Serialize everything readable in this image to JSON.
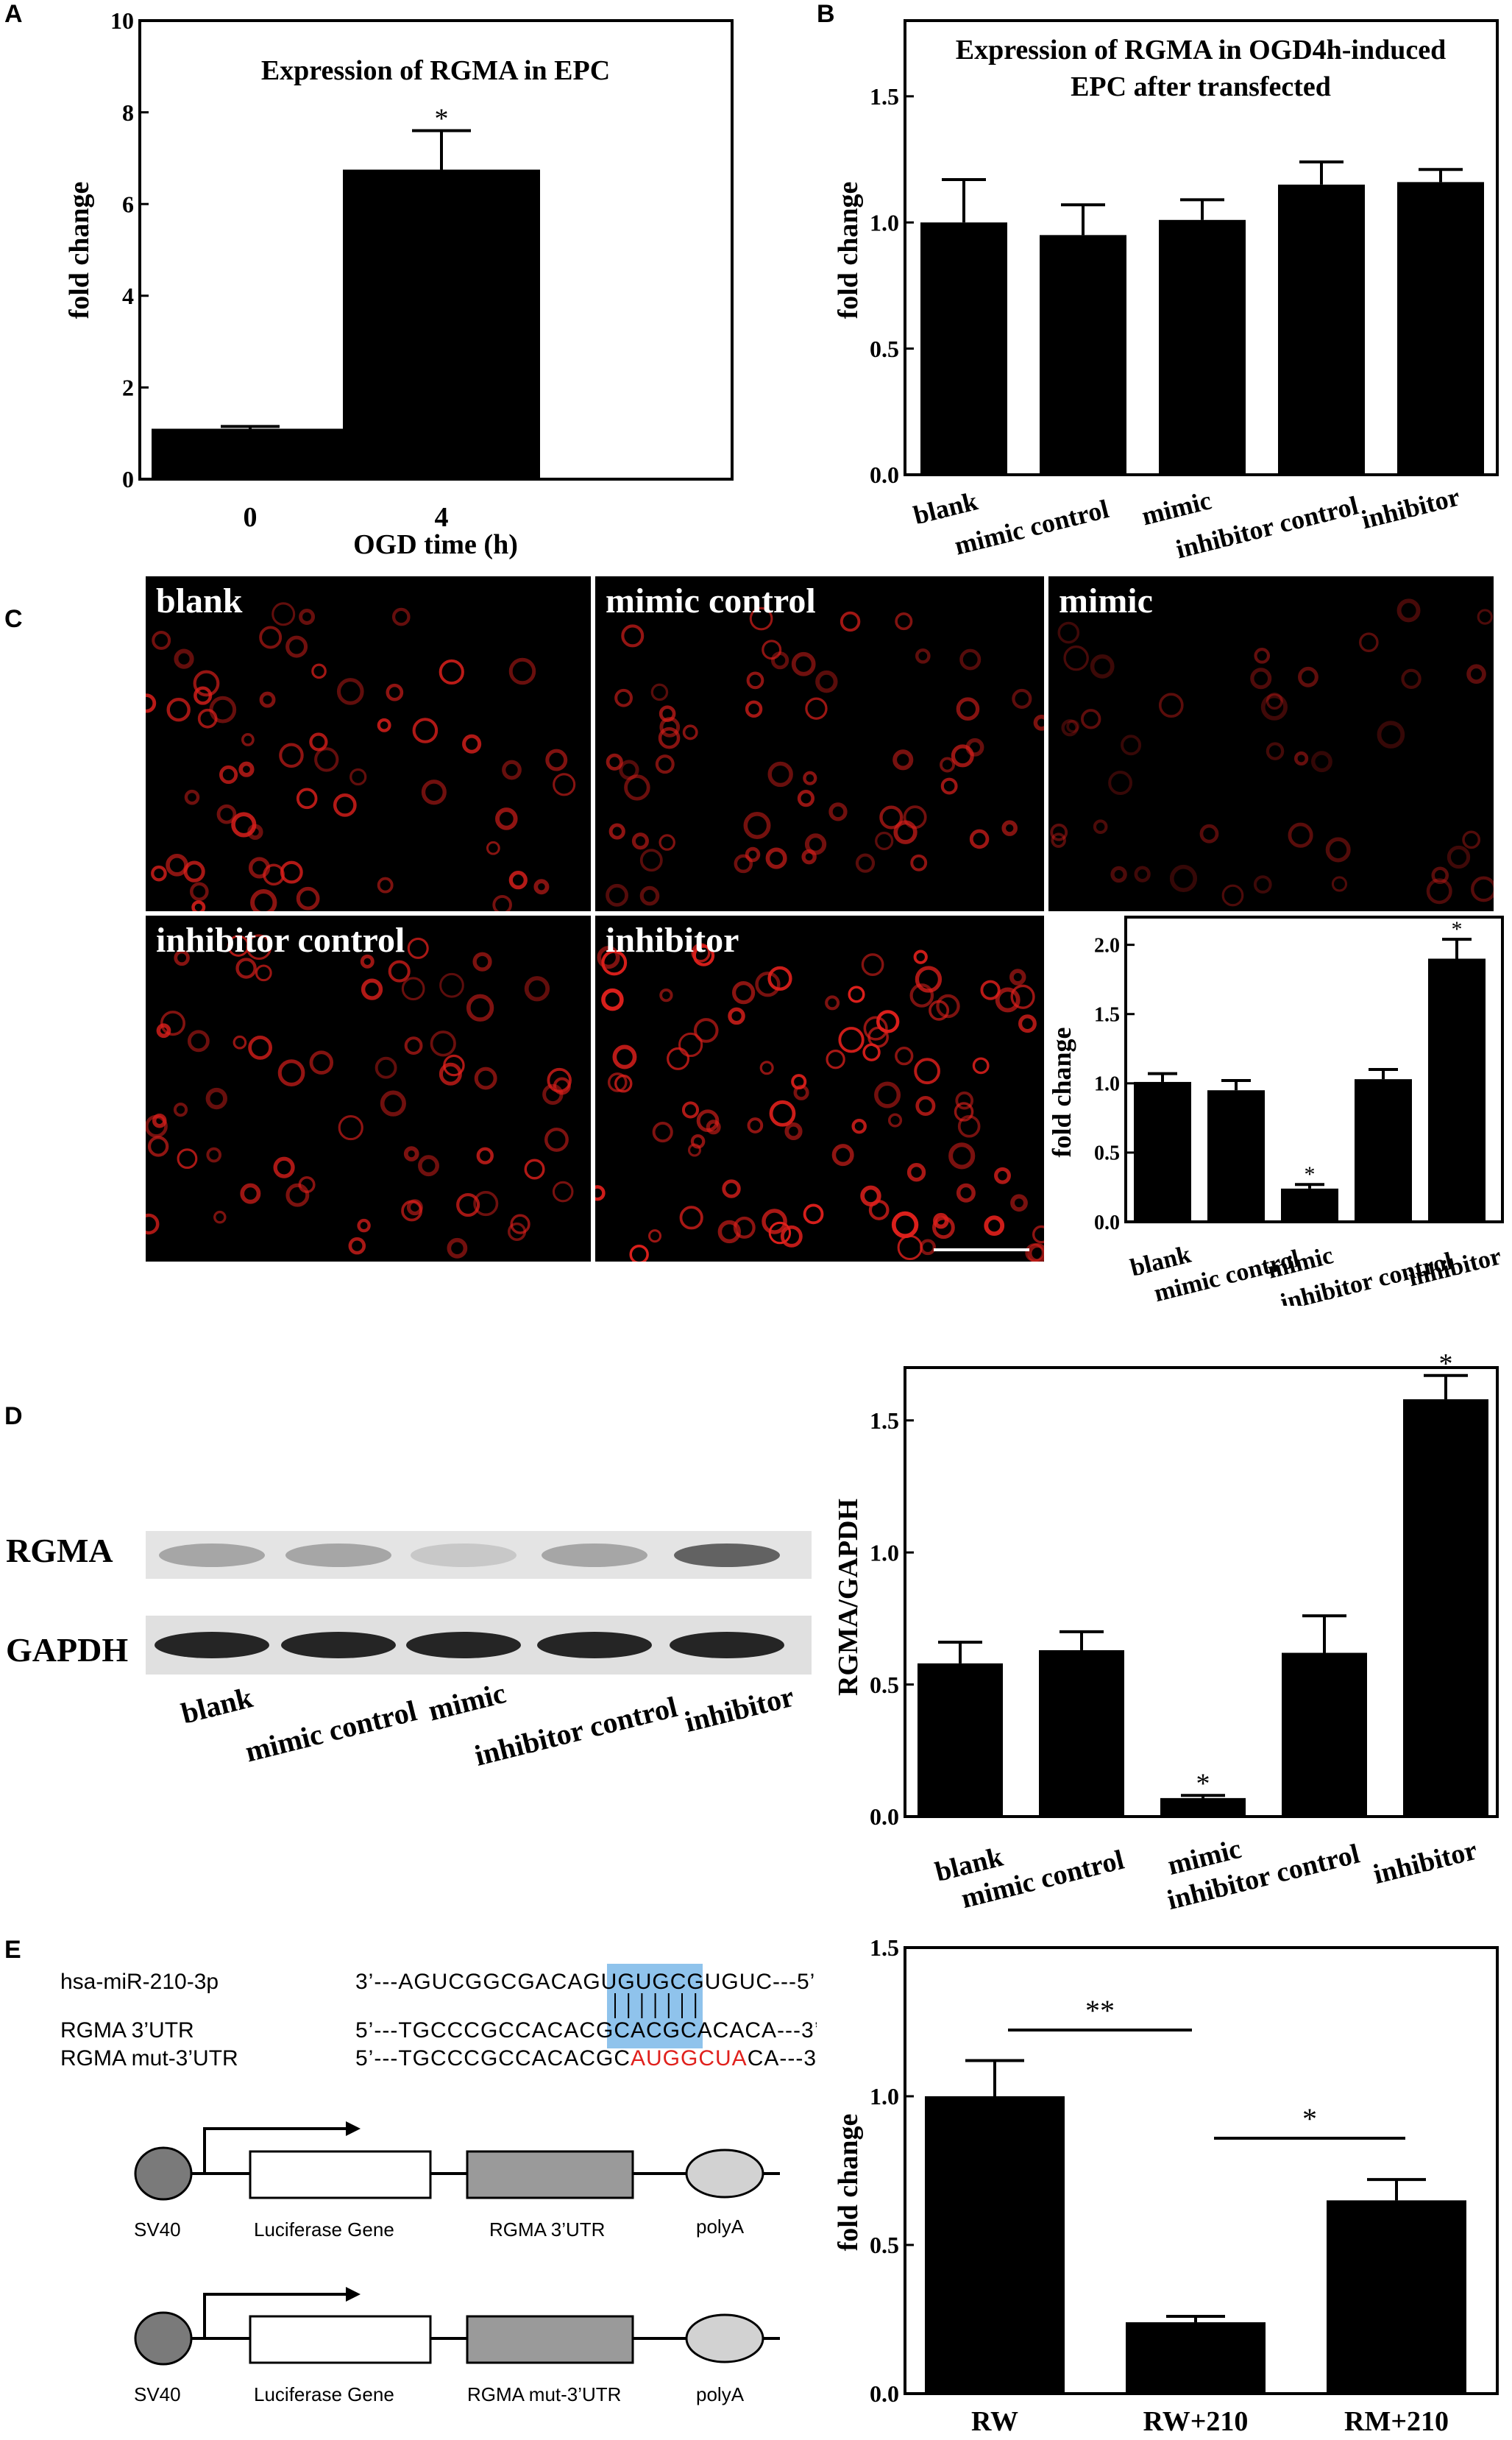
{
  "panels": {
    "A": "A",
    "B": "B",
    "C": "C",
    "D": "D",
    "E": "E"
  },
  "chart_a": {
    "type": "bar",
    "title": "Expression of RGMA in EPC",
    "xlabel": "OGD time (h)",
    "ylabel": "fold change",
    "categories": [
      "0",
      "4"
    ],
    "values": [
      1.1,
      6.75
    ],
    "errors": [
      0.05,
      0.85
    ],
    "sig": [
      "",
      "*"
    ],
    "ylim": [
      0,
      10
    ],
    "yticks": [
      "0",
      "2",
      "4",
      "6",
      "8",
      "10"
    ]
  },
  "chart_b": {
    "type": "bar",
    "title_line1": "Expression of RGMA in OGD4h-induced",
    "title_line2": "EPC after transfected",
    "ylabel": "fold change",
    "categories": [
      "blank",
      "mimic control",
      "mimic",
      "inhibitor control",
      "inhibitor"
    ],
    "values": [
      1.0,
      0.95,
      1.01,
      1.15,
      1.16
    ],
    "errors": [
      0.17,
      0.12,
      0.08,
      0.09,
      0.05
    ],
    "ylim": [
      0,
      1.8
    ],
    "yticks": [
      "0.0",
      "0.5",
      "1.0",
      "1.5"
    ]
  },
  "panel_c": {
    "images": [
      "blank",
      "mimic control",
      "mimic",
      "inhibitor control",
      "inhibitor"
    ],
    "chart": {
      "type": "bar",
      "ylabel": "fold change",
      "categories": [
        "blank",
        "mimic control",
        "mimic",
        "inhibitor control",
        "inhibitor"
      ],
      "values": [
        1.01,
        0.95,
        0.24,
        1.03,
        1.9
      ],
      "errors": [
        0.06,
        0.07,
        0.03,
        0.07,
        0.14
      ],
      "sig": [
        "",
        "",
        "*",
        "",
        "*"
      ],
      "ylim": [
        0,
        2.2
      ],
      "yticks": [
        "0.0",
        "0.5",
        "1.0",
        "1.5",
        "2.0"
      ]
    }
  },
  "panel_d": {
    "blot_labels": [
      "RGMA",
      "GAPDH"
    ],
    "lanes": [
      "blank",
      "mimic control",
      "mimic",
      "inhibitor control",
      "inhibitor"
    ],
    "rgma_intensity": [
      0.45,
      0.45,
      0.2,
      0.45,
      0.95
    ],
    "chart": {
      "type": "bar",
      "ylabel": "RGMA/GAPDH",
      "categories": [
        "blank",
        "mimic control",
        "mimic",
        "inhibitor control",
        "inhibitor"
      ],
      "values": [
        0.58,
        0.63,
        0.07,
        0.62,
        1.58
      ],
      "errors": [
        0.08,
        0.07,
        0.01,
        0.14,
        0.09
      ],
      "sig": [
        "",
        "",
        "*",
        "",
        "*"
      ],
      "ylim": [
        0,
        1.7
      ],
      "yticks": [
        "0.0",
        "0.5",
        "1.0",
        "1.5"
      ]
    }
  },
  "panel_e": {
    "seq_labels": [
      "hsa-miR-210-3p",
      "RGMA  3’UTR",
      "RGMA mut-3’UTR"
    ],
    "seq_mir_pre": "3’---AGUCGGCGACAGUG",
    "seq_mir_hl": "UGCGUGU",
    "seq_mir_post": "C---5’",
    "seq_wt_pre": "5’---TGCCCGCCACACGC",
    "seq_wt_hl": "ACGCACA",
    "seq_wt_post": "CA---3’",
    "seq_mut_pre": "5’---TGCCCGCCACACGC",
    "seq_mut_hl": "AUGGCUA",
    "seq_mut_post": "CA---3’",
    "construct1": [
      "SV40",
      "Luciferase Gene",
      "RGMA 3’UTR",
      "polyA"
    ],
    "construct2": [
      "SV40",
      "Luciferase Gene",
      "RGMA mut-3’UTR",
      "polyA"
    ],
    "highlight_color": "#8fc3ec",
    "mutation_color": "#e0201c",
    "chart": {
      "type": "bar",
      "ylabel": "fold change",
      "categories": [
        "RW",
        "RW+210",
        "RM+210"
      ],
      "values": [
        1.0,
        0.24,
        0.65
      ],
      "errors": [
        0.12,
        0.02,
        0.07
      ],
      "sig_pairs": [
        "**",
        "*"
      ],
      "ylim": [
        0,
        1.5
      ],
      "yticks": [
        "0.0",
        "0.5",
        "1.0",
        "1.5"
      ]
    }
  }
}
